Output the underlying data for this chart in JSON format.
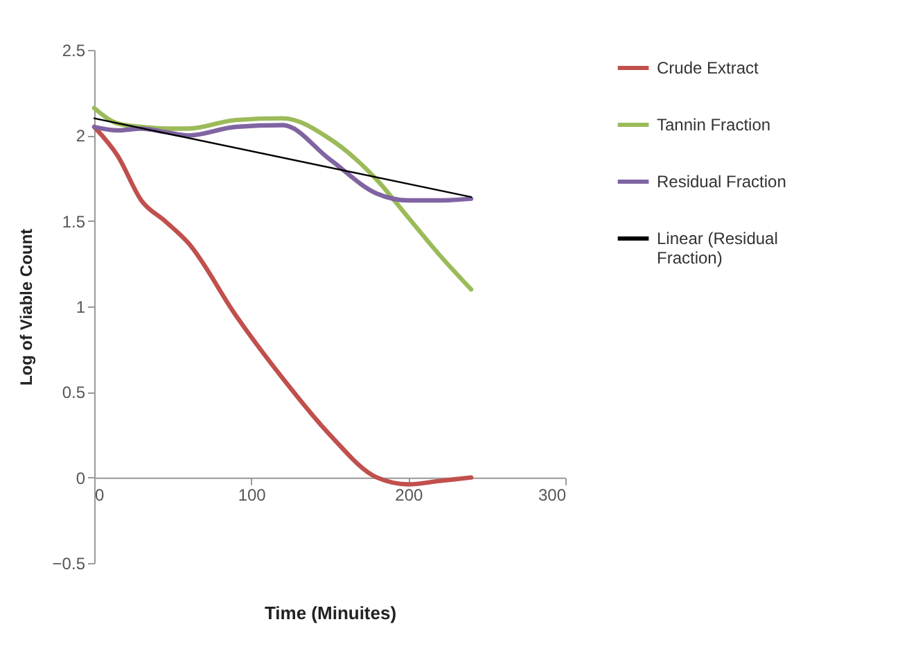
{
  "chart_data": {
    "type": "line",
    "xlabel": "Time (Minuites)",
    "ylabel": "Log of Viable Count",
    "x": [
      0,
      15,
      30,
      45,
      60,
      90,
      120,
      150,
      180,
      200,
      220,
      240
    ],
    "xlim": [
      0,
      300
    ],
    "xticks": [
      0,
      100,
      200,
      300
    ],
    "ylim": [
      -0.5,
      2.5
    ],
    "yticks": [
      -0.5,
      0,
      0.5,
      1,
      1.5,
      2,
      2.5
    ],
    "grid": false,
    "legend": "right",
    "marker": "none",
    "series": [
      {
        "name": "Crude Extract",
        "color": "#c0504d",
        "values": [
          2.05,
          1.88,
          1.62,
          1.5,
          1.37,
          0.95,
          0.58,
          0.25,
          0.0,
          -0.04,
          -0.02,
          0.0
        ]
      },
      {
        "name": "Tannin Fraction",
        "color": "#9bbb59",
        "values": [
          2.16,
          2.07,
          2.05,
          2.04,
          2.04,
          2.09,
          2.1,
          1.98,
          1.74,
          1.52,
          1.3,
          1.1
        ]
      },
      {
        "name": "Residual Fraction",
        "color": "#8064a2",
        "values": [
          2.05,
          2.03,
          2.04,
          2.02,
          2.0,
          2.05,
          2.06,
          1.86,
          1.66,
          1.62,
          1.62,
          1.63
        ]
      },
      {
        "name": "Linear (Residual Fraction)",
        "color": "#000000",
        "x": [
          0,
          240
        ],
        "values": [
          2.1,
          1.64
        ]
      }
    ]
  }
}
